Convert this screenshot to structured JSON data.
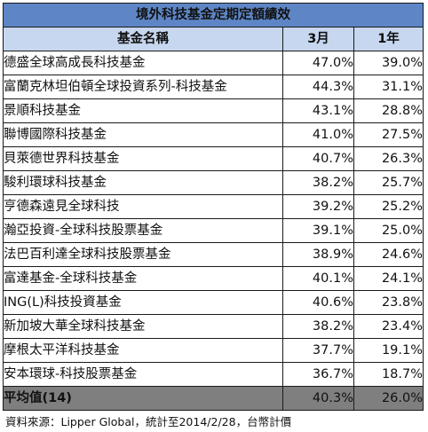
{
  "title": "境外科技基金定期定額績效",
  "headers": {
    "name": "基金名稱",
    "m3": "3月",
    "y1": "1年"
  },
  "rows": [
    {
      "name": "德盛全球高成長科技基金",
      "m3": "47.0%",
      "y1": "39.0%"
    },
    {
      "name": "富蘭克林坦伯頓全球投資系列-科技基金",
      "m3": "44.3%",
      "y1": "31.1%"
    },
    {
      "name": "景順科技基金",
      "m3": "43.1%",
      "y1": "28.8%"
    },
    {
      "name": "聯博國際科技基金",
      "m3": "41.0%",
      "y1": "27.5%"
    },
    {
      "name": "貝萊德世界科技基金",
      "m3": "40.7%",
      "y1": "26.3%"
    },
    {
      "name": "駿利環球科技基金",
      "m3": "38.2%",
      "y1": "25.7%"
    },
    {
      "name": "亨德森遠見全球科技",
      "m3": "39.2%",
      "y1": "25.2%"
    },
    {
      "name": "瀚亞投資-全球科技股票基金",
      "m3": "39.1%",
      "y1": "25.0%"
    },
    {
      "name": "法巴百利達全球科技股票基金",
      "m3": "38.9%",
      "y1": "24.6%"
    },
    {
      "name": "富達基金-全球科技基金",
      "m3": "40.1%",
      "y1": "24.1%"
    },
    {
      "name": "ING(L)科技投資基金",
      "m3": "40.6%",
      "y1": "23.8%"
    },
    {
      "name": "新加坡大華全球科技基金",
      "m3": "38.2%",
      "y1": "23.4%"
    },
    {
      "name": "摩根太平洋科技基金",
      "m3": "37.7%",
      "y1": "19.1%"
    },
    {
      "name": "安本環球-科技股票基金",
      "m3": "36.7%",
      "y1": "18.7%"
    }
  ],
  "average": {
    "label": "平均值(14)",
    "m3": "40.3%",
    "y1": "26.0%"
  },
  "source": "資料來源：Lipper Global，統計至2014/2/28，台幣計價",
  "colors": {
    "title_bg": "#5e86c6",
    "header_bg": "#c6d7ef",
    "average_bg": "#7f7f7f"
  }
}
